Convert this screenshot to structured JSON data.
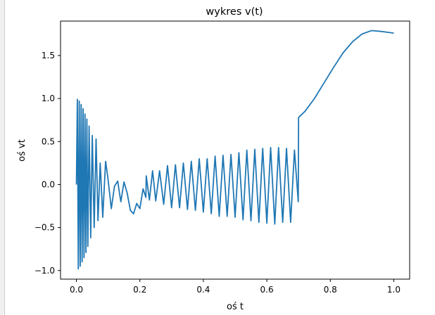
{
  "chart_data": {
    "type": "line",
    "title": "wykres v(t)",
    "xlabel": "oś t",
    "ylabel": "oś vt",
    "xlim": [
      -0.05,
      1.05
    ],
    "ylim": [
      -1.1,
      1.9
    ],
    "xticks": [
      "0.0",
      "0.2",
      "0.4",
      "0.6",
      "0.8",
      "1.0"
    ],
    "xtick_values": [
      0.0,
      0.2,
      0.4,
      0.6,
      0.8,
      1.0
    ],
    "yticks": [
      "−1.0",
      "−0.5",
      "0.0",
      "0.5",
      "1.0",
      "1.5"
    ],
    "ytick_values": [
      -1.0,
      -0.5,
      0.0,
      0.5,
      1.0,
      1.5
    ],
    "grid": false,
    "series": [
      {
        "color": "#1f77b4",
        "description": "piecewise signal: decaying chirp 0-0.22, growing oscillation 0.22-0.70, smooth rise 0.70-1.0",
        "x": [
          0.0,
          0.003,
          0.006,
          0.009,
          0.012,
          0.015,
          0.018,
          0.021,
          0.024,
          0.027,
          0.03,
          0.033,
          0.036,
          0.04,
          0.045,
          0.05,
          0.056,
          0.062,
          0.068,
          0.075,
          0.083,
          0.092,
          0.1,
          0.11,
          0.12,
          0.13,
          0.14,
          0.15,
          0.16,
          0.17,
          0.18,
          0.19,
          0.2,
          0.21,
          0.219,
          0.22,
          0.23,
          0.24,
          0.25,
          0.262,
          0.275,
          0.287,
          0.3,
          0.312,
          0.325,
          0.337,
          0.35,
          0.362,
          0.375,
          0.387,
          0.4,
          0.412,
          0.425,
          0.437,
          0.45,
          0.462,
          0.475,
          0.487,
          0.5,
          0.512,
          0.525,
          0.537,
          0.55,
          0.562,
          0.575,
          0.587,
          0.6,
          0.612,
          0.625,
          0.637,
          0.65,
          0.662,
          0.675,
          0.687,
          0.699,
          0.7,
          0.72,
          0.75,
          0.78,
          0.81,
          0.84,
          0.87,
          0.9,
          0.93,
          0.96,
          0.98,
          1.0
        ],
        "y": [
          0.0,
          0.99,
          -0.98,
          0.97,
          -0.95,
          0.93,
          -0.9,
          0.88,
          -0.85,
          0.82,
          -0.79,
          0.76,
          -0.72,
          0.68,
          -0.62,
          0.57,
          -0.5,
          0.53,
          -0.42,
          0.25,
          -0.38,
          0.27,
          0.05,
          -0.28,
          -0.02,
          0.04,
          -0.2,
          0.03,
          -0.1,
          -0.3,
          -0.34,
          -0.22,
          -0.28,
          -0.05,
          -0.15,
          0.1,
          -0.18,
          0.16,
          -0.19,
          0.16,
          -0.23,
          0.22,
          -0.27,
          0.23,
          -0.27,
          0.25,
          -0.29,
          0.27,
          -0.3,
          0.3,
          -0.32,
          0.3,
          -0.34,
          0.33,
          -0.37,
          0.34,
          -0.37,
          0.35,
          -0.38,
          0.37,
          -0.41,
          0.4,
          -0.42,
          0.41,
          -0.44,
          0.42,
          -0.45,
          0.43,
          -0.46,
          0.43,
          -0.44,
          0.42,
          -0.44,
          0.4,
          -0.2,
          0.78,
          0.85,
          1.0,
          1.18,
          1.36,
          1.53,
          1.66,
          1.75,
          1.79,
          1.78,
          1.77,
          1.76
        ]
      }
    ]
  }
}
